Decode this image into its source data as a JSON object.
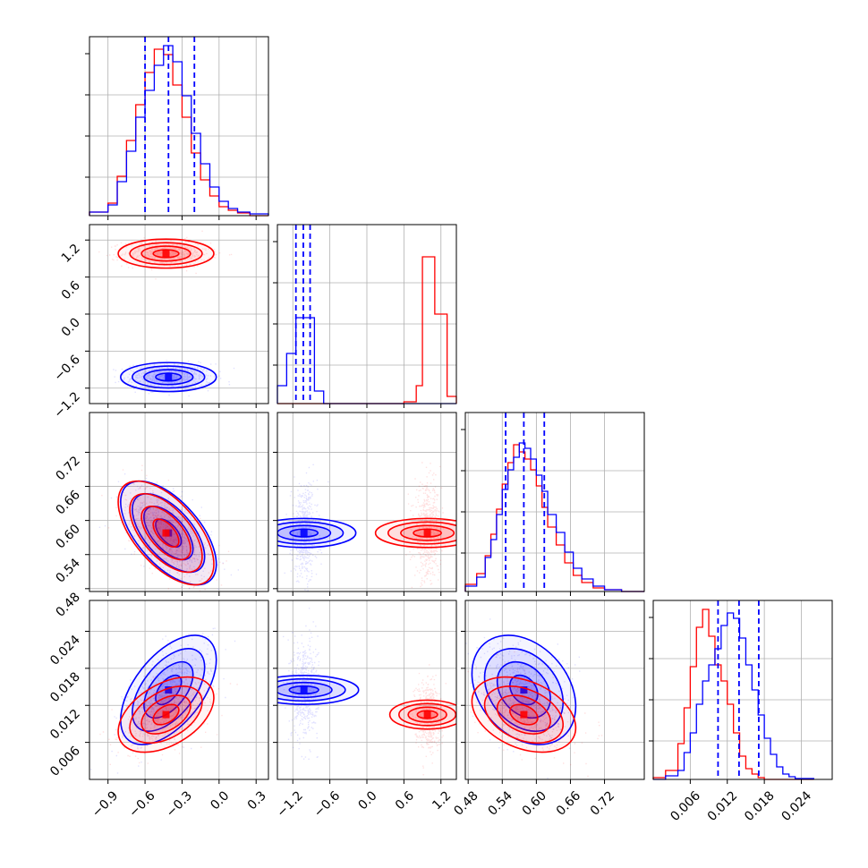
{
  "chart_data": {
    "type": "corner",
    "title": "",
    "parameters": [
      {
        "ticks": [
          -0.9,
          -0.6,
          -0.3,
          0.0,
          0.3
        ],
        "tick_labels": [
          "−0.9",
          "−0.6",
          "−0.3",
          "0.0",
          "0.3"
        ],
        "range": [
          -1.05,
          0.4
        ]
      },
      {
        "ticks": [
          -1.2,
          -0.6,
          0.0,
          0.6,
          1.2
        ],
        "tick_labels": [
          "−1.2",
          "−0.6",
          "0.0",
          "0.6",
          "1.2"
        ],
        "range": [
          -1.45,
          1.45
        ]
      },
      {
        "ticks": [
          0.48,
          0.54,
          0.6,
          0.66,
          0.72
        ],
        "tick_labels": [
          "0.48",
          "0.54",
          "0.60",
          "0.66",
          "0.72"
        ],
        "range": [
          0.475,
          0.79
        ]
      },
      {
        "ticks": [
          0.006,
          0.012,
          0.018,
          0.024
        ],
        "tick_labels": [
          "0.006",
          "0.012",
          "0.018",
          "0.024"
        ],
        "range": [
          0.0,
          0.029
        ]
      }
    ],
    "series": [
      {
        "color": "#0000ff",
        "means": [
          -0.41,
          -1.02,
          0.578,
          0.0145
        ],
        "sds": [
          0.14,
          0.085,
          0.033,
          0.0032
        ],
        "correlations": {
          "0-2": -0.6,
          "0-3": 0.55,
          "2-3": -0.3
        },
        "quantile_lines": [
          [
            -0.6,
            -0.41,
            -0.2
          ],
          [
            -1.15,
            -1.03,
            -0.92
          ],
          [
            0.546,
            0.578,
            0.614
          ],
          [
            0.0105,
            0.0139,
            0.0171
          ]
        ]
      },
      {
        "color": "#ff0000",
        "means": [
          -0.43,
          0.98,
          0.578,
          0.0105
        ],
        "sds": [
          0.14,
          0.085,
          0.033,
          0.0022
        ],
        "correlations": {
          "0-2": -0.6,
          "0-3": 0.45,
          "2-3": -0.35
        }
      }
    ],
    "diagonal_histograms": [
      {
        "edges": [
          -1.05,
          -0.9,
          -0.825,
          -0.75,
          -0.675,
          -0.6,
          -0.525,
          -0.45,
          -0.375,
          -0.3,
          -0.225,
          -0.15,
          -0.075,
          0.0,
          0.075,
          0.15,
          0.25,
          0.4
        ],
        "blue": [
          0.02,
          0.06,
          0.19,
          0.36,
          0.55,
          0.7,
          0.84,
          0.95,
          0.86,
          0.67,
          0.46,
          0.29,
          0.16,
          0.08,
          0.04,
          0.02,
          0.01
        ],
        "red": [
          0.02,
          0.07,
          0.22,
          0.42,
          0.62,
          0.8,
          0.93,
          0.9,
          0.73,
          0.55,
          0.35,
          0.2,
          0.11,
          0.05,
          0.03,
          0.015,
          0.0
        ]
      },
      {
        "edges": [
          -1.45,
          -1.3,
          -1.15,
          -0.85,
          -0.7,
          0.6,
          0.8,
          0.9,
          1.1,
          1.3,
          1.45
        ],
        "blue": [
          0.1,
          0.28,
          0.48,
          0.07,
          0.0,
          0.0,
          0.0,
          0.0,
          0.0,
          0.0
        ],
        "red": [
          0.0,
          0.0,
          0.0,
          0.0,
          0.0,
          0.01,
          0.1,
          0.82,
          0.5,
          0.04
        ]
      },
      {
        "edges": [
          0.475,
          0.495,
          0.51,
          0.52,
          0.53,
          0.54,
          0.55,
          0.56,
          0.57,
          0.58,
          0.59,
          0.6,
          0.61,
          0.62,
          0.635,
          0.65,
          0.665,
          0.68,
          0.7,
          0.72,
          0.75,
          0.79
        ],
        "blue": [
          0.03,
          0.08,
          0.19,
          0.29,
          0.43,
          0.57,
          0.68,
          0.75,
          0.83,
          0.8,
          0.74,
          0.65,
          0.56,
          0.43,
          0.33,
          0.22,
          0.13,
          0.07,
          0.03,
          0.01,
          0.0
        ],
        "red": [
          0.04,
          0.1,
          0.2,
          0.32,
          0.46,
          0.6,
          0.72,
          0.82,
          0.78,
          0.74,
          0.68,
          0.59,
          0.47,
          0.36,
          0.26,
          0.16,
          0.09,
          0.05,
          0.02,
          0.01,
          0.0
        ]
      },
      {
        "edges": [
          0.0,
          0.002,
          0.004,
          0.005,
          0.006,
          0.007,
          0.008,
          0.009,
          0.01,
          0.011,
          0.012,
          0.013,
          0.014,
          0.015,
          0.016,
          0.017,
          0.018,
          0.019,
          0.02,
          0.021,
          0.022,
          0.023,
          0.026
        ],
        "blue": [
          0.0,
          0.02,
          0.05,
          0.15,
          0.26,
          0.42,
          0.55,
          0.64,
          0.73,
          0.86,
          0.93,
          0.9,
          0.79,
          0.64,
          0.5,
          0.36,
          0.23,
          0.14,
          0.07,
          0.03,
          0.015,
          0.005
        ],
        "red": [
          0.01,
          0.05,
          0.2,
          0.4,
          0.63,
          0.85,
          0.95,
          0.8,
          0.64,
          0.55,
          0.42,
          0.26,
          0.13,
          0.06,
          0.03,
          0.01,
          0.0,
          0.0,
          0.0,
          0.0,
          0.0,
          0.0
        ]
      }
    ],
    "grid": true,
    "legend": "none"
  }
}
